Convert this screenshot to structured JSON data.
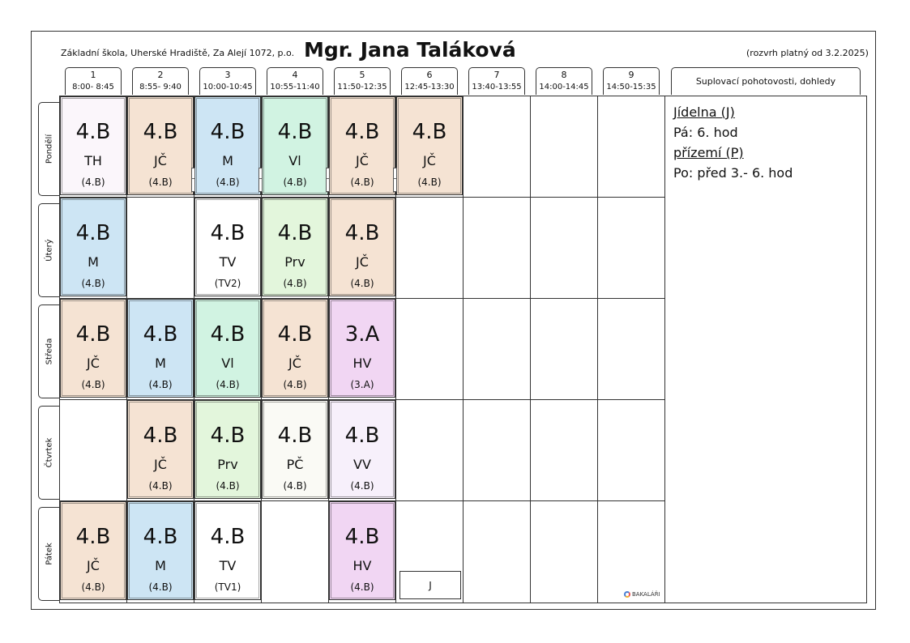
{
  "header": {
    "school": "Základní škola, Uherské Hradiště, Za Alejí 1072, p.o.",
    "teacher": "Mgr. Jana Taláková",
    "validity": "(rozvrh platný od 3.2.2025)"
  },
  "periods": [
    {
      "num": "1",
      "time": "8:00- 8:45"
    },
    {
      "num": "2",
      "time": "8:55- 9:40"
    },
    {
      "num": "3",
      "time": "10:00-10:45"
    },
    {
      "num": "4",
      "time": "10:55-11:40"
    },
    {
      "num": "5",
      "time": "11:50-12:35"
    },
    {
      "num": "6",
      "time": "12:45-13:30"
    },
    {
      "num": "7",
      "time": "13:40-13:55"
    },
    {
      "num": "8",
      "time": "14:00-14:45"
    },
    {
      "num": "9",
      "time": "14:50-15:35"
    }
  ],
  "supplementary_header": "Suplovací pohotovosti, dohledy",
  "days": [
    "Pondělí",
    "Úterý",
    "Středa",
    "Čtvrtek",
    "Pátek"
  ],
  "colors": {
    "JC": "#f5e3d3",
    "M": "#cde5f4",
    "VL": "#d1f3e2",
    "PRV": "#e3f6dc",
    "HV": "#f1d6f3",
    "VV": "#f7f0fb",
    "TH": "#fbf6fb",
    "PC": "#fafaf5",
    "TV": "#ffffff"
  },
  "schedule": {
    "mon": [
      {
        "cls": "4.B",
        "subj": "TH",
        "room": "(4.B)",
        "color": "#fbf6fb"
      },
      {
        "cls": "4.B",
        "subj": "JČ",
        "room": "(4.B)",
        "color": "#f5e3d3"
      },
      {
        "cls": "4.B",
        "subj": "M",
        "room": "(4.B)",
        "color": "#cde5f4"
      },
      {
        "cls": "4.B",
        "subj": "Vl",
        "room": "(4.B)",
        "color": "#d1f3e2"
      },
      {
        "cls": "4.B",
        "subj": "JČ",
        "room": "(4.B)",
        "color": "#f5e3d3"
      },
      {
        "cls": "4.B",
        "subj": "JČ",
        "room": "(4.B)",
        "color": "#f5e3d3"
      }
    ],
    "tue": [
      {
        "cls": "4.B",
        "subj": "M",
        "room": "(4.B)",
        "color": "#cde5f4"
      },
      {
        "cls": "4.B",
        "subj": "TV",
        "room": "(TV2)",
        "color": "#ffffff"
      },
      {
        "cls": "4.B",
        "subj": "Prv",
        "room": "(4.B)",
        "color": "#e3f6dc"
      },
      {
        "cls": "4.B",
        "subj": "JČ",
        "room": "(4.B)",
        "color": "#f5e3d3"
      }
    ],
    "wed": [
      {
        "cls": "4.B",
        "subj": "JČ",
        "room": "(4.B)",
        "color": "#f5e3d3"
      },
      {
        "cls": "4.B",
        "subj": "M",
        "room": "(4.B)",
        "color": "#cde5f4"
      },
      {
        "cls": "4.B",
        "subj": "Vl",
        "room": "(4.B)",
        "color": "#d1f3e2"
      },
      {
        "cls": "4.B",
        "subj": "JČ",
        "room": "(4.B)",
        "color": "#f5e3d3"
      },
      {
        "cls": "3.A",
        "subj": "HV",
        "room": "(3.A)",
        "color": "#f1d6f3"
      }
    ],
    "thu": [
      {
        "cls": "4.B",
        "subj": "JČ",
        "room": "(4.B)",
        "color": "#f5e3d3"
      },
      {
        "cls": "4.B",
        "subj": "Prv",
        "room": "(4.B)",
        "color": "#e3f6dc"
      },
      {
        "cls": "4.B",
        "subj": "PČ",
        "room": "(4.B)",
        "color": "#fafaf5"
      },
      {
        "cls": "4.B",
        "subj": "VV",
        "room": "(4.B)",
        "color": "#f7f0fb"
      }
    ],
    "fri": [
      {
        "cls": "4.B",
        "subj": "JČ",
        "room": "(4.B)",
        "color": "#f5e3d3"
      },
      {
        "cls": "4.B",
        "subj": "M",
        "room": "(4.B)",
        "color": "#cde5f4"
      },
      {
        "cls": "4.B",
        "subj": "TV",
        "room": "(TV1)",
        "color": "#ffffff"
      },
      {
        "cls": "4.B",
        "subj": "HV",
        "room": "(4.B)",
        "color": "#f1d6f3"
      }
    ]
  },
  "duty_fri_p6": "J",
  "supervision": {
    "line1": "Jídelna (J)",
    "line2": "Pá: 6. hod",
    "line3": "přízemí (P)",
    "line4": "Po: před 3.- 6. hod"
  },
  "brand": "BAKALÁŘI"
}
